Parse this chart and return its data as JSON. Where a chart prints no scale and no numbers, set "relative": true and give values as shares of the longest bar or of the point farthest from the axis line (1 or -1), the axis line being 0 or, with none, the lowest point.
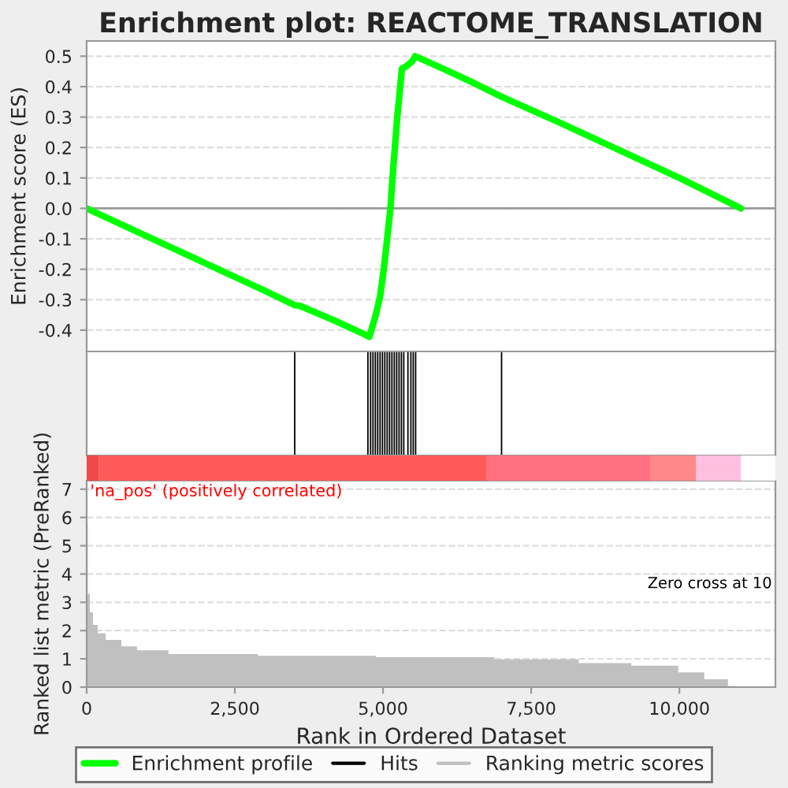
{
  "chart_data": [
    {
      "type": "line",
      "title": "Enrichment plot: REACTOME_TRANSLATION",
      "ylabel": "Enrichment score (ES)",
      "xlim": [
        0,
        11620
      ],
      "ylim": [
        -0.47,
        0.55
      ],
      "yticks": [
        -0.4,
        -0.3,
        -0.2,
        -0.1,
        {
          "value": 0,
          "label": "0.0"
        },
        0.1,
        0.2,
        0.3,
        0.4,
        0.5
      ],
      "tick_labels": "y",
      "grid": "y",
      "ref_lines": [
        {
          "axis": "y",
          "value": 0,
          "color": "#999999"
        }
      ],
      "series": [
        {
          "name": "Enrichment profile",
          "color": "#00ff00",
          "x": [
            0,
            1000,
            2000,
            3000,
            3510,
            3600,
            4200,
            4700,
            4770,
            4875,
            4950,
            5010,
            5070,
            5125,
            5160,
            5200,
            5240,
            5275,
            5320,
            5380,
            5450,
            5500,
            5540,
            6000,
            6500,
            7000,
            8000,
            9000,
            10000,
            11040
          ],
          "values": [
            0,
            -0.09,
            -0.18,
            -0.27,
            -0.318,
            -0.32,
            -0.37,
            -0.415,
            -0.422,
            -0.352,
            -0.29,
            -0.205,
            -0.1,
            0,
            0.1,
            0.2,
            0.3,
            0.37,
            0.46,
            0.465,
            0.476,
            0.485,
            0.5,
            0.46,
            0.415,
            0.367,
            0.28,
            0.19,
            0.1,
            0
          ]
        }
      ]
    },
    {
      "type": "bar",
      "relative": true,
      "xlim": [
        0,
        11620
      ],
      "tick_labels": false,
      "series": [
        {
          "name": "Hits",
          "color": "#000000",
          "x": [
            3510,
            4745,
            4790,
            4830,
            4870,
            4910,
            4950,
            4990,
            5030,
            5070,
            5110,
            5150,
            5190,
            5230,
            5270,
            5310,
            5350,
            5420,
            5470,
            5510,
            5550,
            7000
          ],
          "values": [
            1,
            1,
            1,
            1,
            1,
            1,
            1,
            1,
            1,
            1,
            1,
            1,
            1,
            1,
            1,
            1,
            1,
            1,
            1,
            1,
            1,
            1
          ]
        }
      ]
    },
    {
      "type": "area",
      "xlabel": "Rank in Ordered Dataset",
      "ylabel": "Ranked list metric (PreRanked)",
      "xlim": [
        0,
        11620
      ],
      "ylim": [
        0,
        7.3
      ],
      "xticks": [
        0,
        {
          "value": 2500,
          "label": "2,500"
        },
        {
          "value": 5000,
          "label": "5,000"
        },
        {
          "value": 7500,
          "label": "7,500"
        },
        {
          "value": 10000,
          "label": "10,000"
        }
      ],
      "yticks": [
        0,
        1,
        2,
        3,
        4,
        5,
        6,
        7
      ],
      "grid": "y",
      "legend": "bottom",
      "annotations": [
        "'na_pos' (positively correlated)",
        "Zero cross at 10"
      ],
      "series": [
        {
          "name": "Ranking metric scores",
          "color": "#c0c0c0",
          "x": [
            0,
            18,
            53,
            106,
            186,
            320,
            585,
            850,
            1380,
            2890,
            4880,
            6880,
            8300,
            9190,
            9980,
            10420,
            10820,
            10950
          ],
          "values": [
            5.8,
            3.3,
            2.65,
            2.2,
            1.9,
            1.67,
            1.44,
            1.3,
            1.17,
            1.11,
            1.06,
            0.98,
            0.85,
            0.76,
            0.52,
            0.28,
            0.04,
            0
          ]
        }
      ]
    }
  ]
}
